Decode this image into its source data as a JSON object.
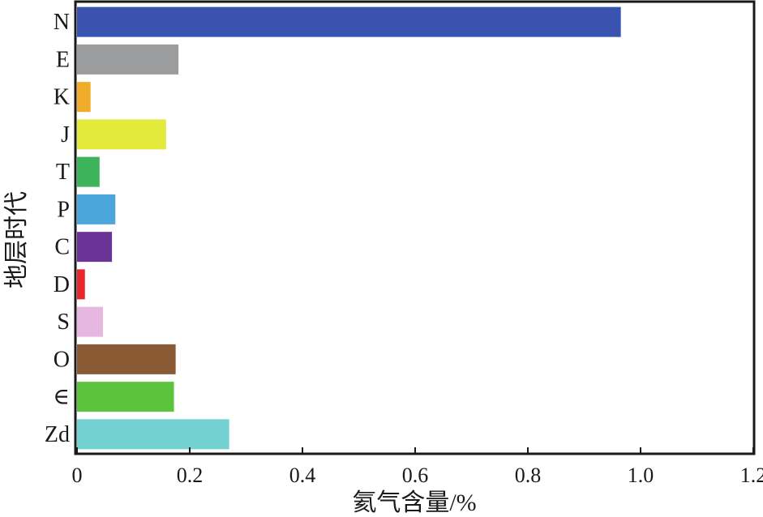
{
  "chart_data": {
    "type": "bar",
    "orientation": "horizontal",
    "xlabel": "氦气含量/%",
    "ylabel": "地层时代",
    "xlim": [
      0,
      1.2
    ],
    "xticks": [
      "0",
      "0.2",
      "0.4",
      "0.6",
      "0.8",
      "1.0",
      "1.2"
    ],
    "grid": false,
    "categories": [
      "N",
      "E",
      "K",
      "J",
      "T",
      "P",
      "C",
      "D",
      "S",
      "O",
      "∈",
      "Zd"
    ],
    "values": [
      0.965,
      0.18,
      0.024,
      0.158,
      0.04,
      0.068,
      0.062,
      0.014,
      0.046,
      0.175,
      0.172,
      0.27
    ],
    "colors": [
      "#3a53b0",
      "#9b9c9e",
      "#f1ad2a",
      "#e3ea3c",
      "#3db45a",
      "#4ba6dc",
      "#6a3496",
      "#e5262c",
      "#e6b7e0",
      "#8a5a35",
      "#5ec33c",
      "#73d1d1"
    ]
  }
}
